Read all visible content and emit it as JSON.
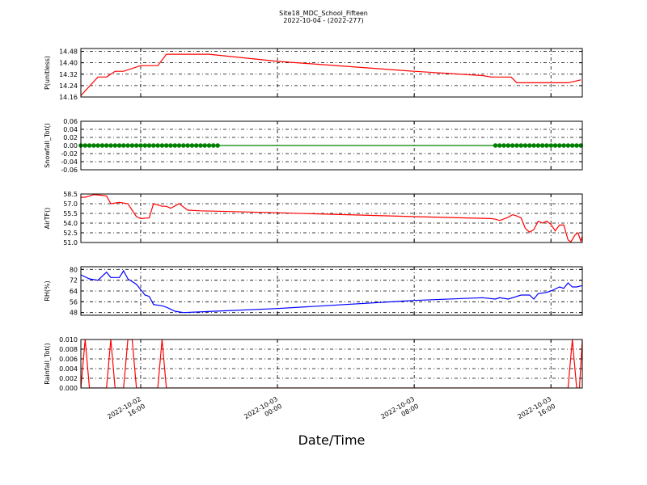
{
  "figure": {
    "title": "Site18_MDC_School_Fifteen",
    "subtitle": "2022-10-04 - (2022-277)",
    "xlabel": "Date/Time"
  },
  "chart_data": [
    {
      "type": "line",
      "ylabel": "P(unitless)",
      "ylim": [
        14.16,
        14.5
      ],
      "yticks": [
        "14.16",
        "14.24",
        "14.32",
        "14.40",
        "14.48"
      ],
      "grid": true,
      "series": [
        {
          "color": "#ff0000",
          "points": [
            [
              "2022-10-02 12:30",
              14.17
            ],
            [
              "2022-10-02 13:30",
              14.3
            ],
            [
              "2022-10-02 14:00",
              14.3
            ],
            [
              "2022-10-02 14:30",
              14.34
            ],
            [
              "2022-10-02 15:00",
              14.34
            ],
            [
              "2022-10-02 16:00",
              14.38
            ],
            [
              "2022-10-02 17:00",
              14.38
            ],
            [
              "2022-10-02 17:30",
              14.46
            ],
            [
              "2022-10-02 20:00",
              14.46
            ],
            [
              "2022-10-03 00:00",
              14.41
            ],
            [
              "2022-10-03 08:00",
              14.34
            ],
            [
              "2022-10-03 12:00",
              14.31
            ],
            [
              "2022-10-03 12:30",
              14.3
            ],
            [
              "2022-10-03 13:40",
              14.3
            ],
            [
              "2022-10-03 14:00",
              14.26
            ],
            [
              "2022-10-03 16:00",
              14.26
            ],
            [
              "2022-10-03 17:00",
              14.26
            ],
            [
              "2022-10-03 17:45",
              14.28
            ]
          ]
        }
      ]
    },
    {
      "type": "line",
      "ylabel": "Snowfall_Tot()",
      "ylim": [
        -0.06,
        0.06
      ],
      "yticks": [
        "-0.06",
        "-0.04",
        "-0.02",
        "0.00",
        "0.02",
        "0.04",
        "0.06"
      ],
      "grid": true,
      "series": [
        {
          "color": "#008000",
          "marker": "circle",
          "points": [
            [
              "2022-10-02 12:30",
              0
            ],
            [
              "2022-10-02 12:45",
              0
            ],
            [
              "2022-10-02 13:00",
              0
            ],
            [
              "2022-10-02 13:15",
              0
            ],
            [
              "2022-10-02 13:30",
              0
            ],
            [
              "2022-10-02 13:45",
              0
            ],
            [
              "2022-10-02 14:00",
              0
            ],
            [
              "2022-10-02 14:15",
              0
            ],
            [
              "2022-10-02 14:30",
              0
            ],
            [
              "2022-10-02 14:45",
              0
            ],
            [
              "2022-10-02 15:00",
              0
            ],
            [
              "2022-10-02 15:15",
              0
            ],
            [
              "2022-10-02 15:30",
              0
            ],
            [
              "2022-10-02 15:45",
              0
            ],
            [
              "2022-10-02 16:00",
              0
            ],
            [
              "2022-10-02 16:15",
              0
            ],
            [
              "2022-10-02 16:30",
              0
            ],
            [
              "2022-10-02 16:45",
              0
            ],
            [
              "2022-10-02 17:00",
              0
            ],
            [
              "2022-10-02 17:15",
              0
            ],
            [
              "2022-10-02 17:30",
              0
            ],
            [
              "2022-10-02 17:45",
              0
            ],
            [
              "2022-10-02 18:00",
              0
            ],
            [
              "2022-10-02 18:15",
              0
            ],
            [
              "2022-10-02 18:30",
              0
            ],
            [
              "2022-10-02 18:45",
              0
            ],
            [
              "2022-10-02 19:00",
              0
            ],
            [
              "2022-10-02 19:15",
              0
            ],
            [
              "2022-10-02 19:30",
              0
            ],
            [
              "2022-10-02 19:45",
              0
            ],
            [
              "2022-10-02 20:00",
              0
            ],
            [
              "2022-10-02 20:15",
              0
            ],
            [
              "2022-10-02 20:30",
              0
            ],
            [
              "2022-10-03 12:45",
              0
            ],
            [
              "2022-10-03 13:00",
              0
            ],
            [
              "2022-10-03 13:15",
              0
            ],
            [
              "2022-10-03 13:30",
              0
            ],
            [
              "2022-10-03 13:45",
              0
            ],
            [
              "2022-10-03 14:00",
              0
            ],
            [
              "2022-10-03 14:15",
              0
            ],
            [
              "2022-10-03 14:30",
              0
            ],
            [
              "2022-10-03 14:45",
              0
            ],
            [
              "2022-10-03 15:00",
              0
            ],
            [
              "2022-10-03 15:15",
              0
            ],
            [
              "2022-10-03 15:30",
              0
            ],
            [
              "2022-10-03 15:45",
              0
            ],
            [
              "2022-10-03 16:00",
              0
            ],
            [
              "2022-10-03 16:15",
              0
            ],
            [
              "2022-10-03 16:30",
              0
            ],
            [
              "2022-10-03 16:45",
              0
            ],
            [
              "2022-10-03 17:00",
              0
            ],
            [
              "2022-10-03 17:15",
              0
            ],
            [
              "2022-10-03 17:30",
              0
            ],
            [
              "2022-10-03 17:45",
              0
            ]
          ]
        }
      ]
    },
    {
      "type": "line",
      "ylabel": "AirTF()",
      "ylim": [
        51.0,
        58.5
      ],
      "yticks": [
        "51.0",
        "52.5",
        "54.0",
        "55.5",
        "57.0",
        "58.5"
      ],
      "grid": true,
      "series": [
        {
          "color": "#ff0000",
          "points": [
            [
              "2022-10-02 12:30",
              58.0
            ],
            [
              "2022-10-02 12:45",
              58.0
            ],
            [
              "2022-10-02 13:15",
              58.4
            ],
            [
              "2022-10-02 13:45",
              58.3
            ],
            [
              "2022-10-02 14:00",
              58.2
            ],
            [
              "2022-10-02 14:15",
              57.0
            ],
            [
              "2022-10-02 14:45",
              57.2
            ],
            [
              "2022-10-02 15:15",
              57.0
            ],
            [
              "2022-10-02 15:30",
              56.0
            ],
            [
              "2022-10-02 15:45",
              55.0
            ],
            [
              "2022-10-02 16:00",
              54.7
            ],
            [
              "2022-10-02 16:30",
              54.8
            ],
            [
              "2022-10-02 16:45",
              57.0
            ],
            [
              "2022-10-02 17:00",
              56.8
            ],
            [
              "2022-10-02 17:15",
              56.6
            ],
            [
              "2022-10-02 17:30",
              56.6
            ],
            [
              "2022-10-02 17:45",
              56.3
            ],
            [
              "2022-10-02 18:15",
              57.0
            ],
            [
              "2022-10-02 18:45",
              56.0
            ],
            [
              "2022-10-02 19:30",
              55.9
            ],
            [
              "2022-10-03 00:00",
              55.6
            ],
            [
              "2022-10-03 08:00",
              55.0
            ],
            [
              "2022-10-03 12:30",
              54.7
            ],
            [
              "2022-10-03 12:45",
              54.6
            ],
            [
              "2022-10-03 13:00",
              54.4
            ],
            [
              "2022-10-03 13:30",
              54.9
            ],
            [
              "2022-10-03 13:45",
              55.3
            ],
            [
              "2022-10-03 14:00",
              55.1
            ],
            [
              "2022-10-03 14:15",
              54.8
            ],
            [
              "2022-10-03 14:30",
              53.2
            ],
            [
              "2022-10-03 14:45",
              52.6
            ],
            [
              "2022-10-03 15:00",
              53.0
            ],
            [
              "2022-10-03 15:15",
              54.3
            ],
            [
              "2022-10-03 15:30",
              54.0
            ],
            [
              "2022-10-03 15:45",
              54.3
            ],
            [
              "2022-10-03 16:00",
              53.8
            ],
            [
              "2022-10-03 16:15",
              52.8
            ],
            [
              "2022-10-03 16:30",
              53.7
            ],
            [
              "2022-10-03 16:45",
              53.7
            ],
            [
              "2022-10-03 17:00",
              51.4
            ],
            [
              "2022-10-03 17:10",
              51.1
            ],
            [
              "2022-10-03 17:25",
              52.2
            ],
            [
              "2022-10-03 17:35",
              52.5
            ],
            [
              "2022-10-03 17:45",
              51.2
            ],
            [
              "2022-10-03 17:50",
              52.0
            ]
          ]
        }
      ]
    },
    {
      "type": "line",
      "ylabel": "RH(%)",
      "ylim": [
        46,
        82
      ],
      "yticks": [
        "48",
        "56",
        "64",
        "72",
        "80"
      ],
      "grid": true,
      "series": [
        {
          "color": "#0000ff",
          "points": [
            [
              "2022-10-02 12:30",
              76
            ],
            [
              "2022-10-02 13:00",
              73
            ],
            [
              "2022-10-02 13:30",
              72
            ],
            [
              "2022-10-02 14:00",
              78
            ],
            [
              "2022-10-02 14:15",
              74
            ],
            [
              "2022-10-02 14:45",
              74
            ],
            [
              "2022-10-02 15:00",
              79
            ],
            [
              "2022-10-02 15:15",
              73
            ],
            [
              "2022-10-02 15:45",
              69
            ],
            [
              "2022-10-02 16:15",
              61
            ],
            [
              "2022-10-02 16:30",
              60
            ],
            [
              "2022-10-02 16:45",
              54
            ],
            [
              "2022-10-02 17:15",
              53
            ],
            [
              "2022-10-02 17:30",
              52
            ],
            [
              "2022-10-02 18:00",
              49
            ],
            [
              "2022-10-02 18:30",
              48
            ],
            [
              "2022-10-03 00:00",
              51
            ],
            [
              "2022-10-03 08:00",
              57
            ],
            [
              "2022-10-03 12:00",
              59
            ],
            [
              "2022-10-03 12:45",
              58
            ],
            [
              "2022-10-03 13:00",
              59
            ],
            [
              "2022-10-03 13:30",
              58
            ],
            [
              "2022-10-03 14:00",
              60
            ],
            [
              "2022-10-03 14:15",
              61
            ],
            [
              "2022-10-03 14:45",
              61
            ],
            [
              "2022-10-03 15:00",
              58
            ],
            [
              "2022-10-03 15:15",
              62
            ],
            [
              "2022-10-03 15:45",
              63
            ],
            [
              "2022-10-03 16:00",
              64
            ],
            [
              "2022-10-03 16:30",
              67
            ],
            [
              "2022-10-03 16:45",
              66
            ],
            [
              "2022-10-03 17:00",
              70
            ],
            [
              "2022-10-03 17:15",
              67
            ],
            [
              "2022-10-03 17:30",
              67
            ],
            [
              "2022-10-03 17:50",
              68
            ]
          ]
        }
      ]
    },
    {
      "type": "line",
      "ylabel": "Rainfall_Tot()",
      "ylim": [
        0.0,
        0.01
      ],
      "yticks": [
        "0.000",
        "0.002",
        "0.004",
        "0.006",
        "0.008",
        "0.010"
      ],
      "grid": true,
      "series": [
        {
          "color": "#ff0000",
          "points": [
            [
              "2022-10-02 12:30",
              0
            ],
            [
              "2022-10-02 12:45",
              0.01
            ],
            [
              "2022-10-02 13:00",
              0
            ],
            [
              "2022-10-02 13:30",
              0
            ],
            [
              "2022-10-02 14:00",
              0
            ],
            [
              "2022-10-02 14:15",
              0.01
            ],
            [
              "2022-10-02 14:30",
              0
            ],
            [
              "2022-10-02 15:00",
              0
            ],
            [
              "2022-10-02 15:15",
              0.01
            ],
            [
              "2022-10-02 15:30",
              0.01
            ],
            [
              "2022-10-02 15:45",
              0
            ],
            [
              "2022-10-02 17:00",
              0
            ],
            [
              "2022-10-02 17:15",
              0.01
            ],
            [
              "2022-10-02 17:30",
              0
            ],
            [
              "2022-10-03 16:15",
              0
            ],
            [
              "2022-10-03 17:00",
              0
            ],
            [
              "2022-10-03 17:15",
              0.01
            ],
            [
              "2022-10-03 17:30",
              0
            ],
            [
              "2022-10-03 17:40",
              0
            ],
            [
              "2022-10-03 17:50",
              0.01
            ]
          ]
        }
      ]
    }
  ],
  "xaxis": {
    "xlim": [
      "2022-10-02 12:30",
      "2022-10-03 17:50"
    ],
    "ticks": [
      {
        "at": "2022-10-02 16:00",
        "line1": "2022-10-02",
        "line2": "16:00"
      },
      {
        "at": "2022-10-03 00:00",
        "line1": "2022-10-03",
        "line2": "00:00"
      },
      {
        "at": "2022-10-03 08:00",
        "line1": "2022-10-03",
        "line2": "08:00"
      },
      {
        "at": "2022-10-03 16:00",
        "line1": "2022-10-03",
        "line2": "16:00"
      }
    ]
  }
}
